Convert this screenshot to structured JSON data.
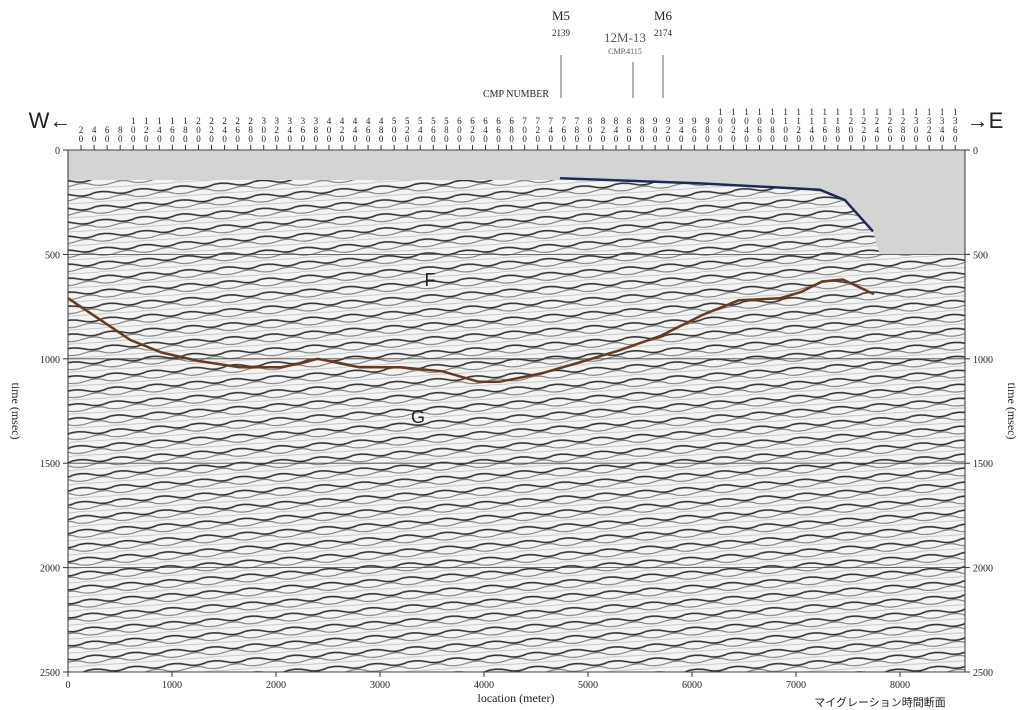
{
  "chart_data": {
    "type": "line",
    "xlabel": "location (meter)",
    "ylabel": "time (msec)",
    "xlim": [
      0,
      8625
    ],
    "ylim": [
      0,
      2500
    ],
    "y_inverted": true,
    "xticks": [
      0,
      1000,
      2000,
      3000,
      4000,
      5000,
      6000,
      7000,
      8000
    ],
    "yticks": [
      0,
      500,
      1000,
      1500,
      2000,
      2500
    ],
    "grid": true,
    "x2label": "CMP NUMBER",
    "x2lim": [
      0,
      1375
    ],
    "x2ticks": [
      20,
      40,
      60,
      80,
      100,
      120,
      140,
      160,
      180,
      200,
      220,
      240,
      260,
      280,
      300,
      320,
      340,
      360,
      380,
      400,
      420,
      440,
      460,
      480,
      500,
      520,
      540,
      560,
      580,
      600,
      620,
      640,
      660,
      680,
      700,
      720,
      740,
      760,
      780,
      800,
      820,
      840,
      860,
      880,
      900,
      920,
      940,
      960,
      980,
      1000,
      1020,
      1040,
      1060,
      1080,
      1100,
      1120,
      1140,
      1160,
      1180,
      1200,
      1220,
      1240,
      1260,
      1280,
      1300,
      1320,
      1340,
      1360
    ],
    "series": [
      {
        "color": "#6b3a1e",
        "x": [
          0,
          300,
          600,
          900,
          1250,
          1650,
          2050,
          2250,
          2400,
          2800,
          3200,
          3600,
          3950,
          4150,
          4550,
          4900,
          5300,
          5700,
          6100,
          6450,
          6850,
          7050,
          7250,
          7450,
          7750
        ],
        "values": [
          710,
          810,
          910,
          970,
          1010,
          1040,
          1040,
          1020,
          1000,
          1040,
          1040,
          1060,
          1110,
          1110,
          1070,
          1020,
          960,
          890,
          790,
          720,
          710,
          680,
          630,
          620,
          690
        ]
      },
      {
        "color": "#1c2a5a",
        "x": [
          4730,
          6080,
          7230,
          7470,
          7740
        ],
        "values": [
          135,
          160,
          190,
          240,
          390
        ]
      }
    ]
  },
  "annotations": {
    "west": "W←",
    "east": "→E",
    "F": "F",
    "G": "G",
    "caption": "マイグレーション時間断面"
  },
  "wells": [
    {
      "name": "M5",
      "cmp": 2139
    },
    {
      "name": "12M-13",
      "cmp": "CMP.4115"
    },
    {
      "name": "M6",
      "cmp": 2174
    }
  ]
}
